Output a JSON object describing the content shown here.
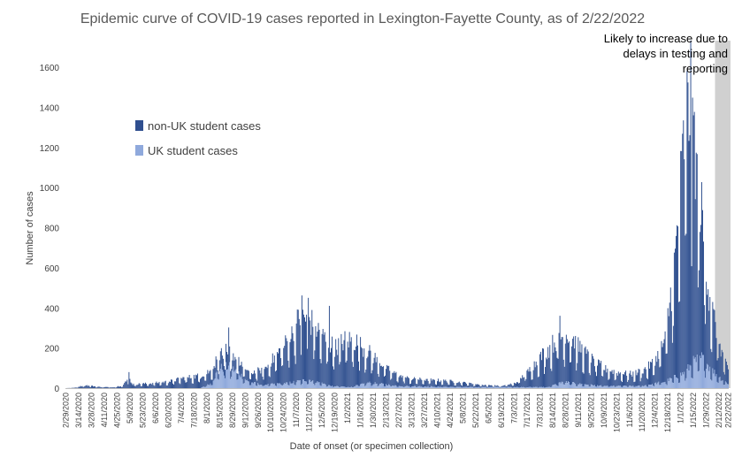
{
  "chart_data": {
    "type": "bar",
    "stacked": true,
    "title": "Epidemic curve of COVID-19 cases reported in Lexington-Fayette County, as of 2/22/2022",
    "xlabel": "Date of onset (or specimen collection)",
    "ylabel": "Number of cases",
    "ylim": [
      0,
      1600
    ],
    "yticks": [
      0,
      200,
      400,
      600,
      800,
      1000,
      1200,
      1400,
      1600
    ],
    "grid": false,
    "legend_position": "upper-left",
    "x_start": "2020-02-29",
    "x_end": "2022-02-22",
    "xtick_labels": [
      "2/29/2020",
      "3/14/2020",
      "3/28/2020",
      "4/11/2020",
      "4/25/2020",
      "5/9/2020",
      "5/23/2020",
      "6/6/2020",
      "6/20/2020",
      "7/4/2020",
      "7/18/2020",
      "8/1/2020",
      "8/15/2020",
      "8/29/2020",
      "9/12/2020",
      "9/26/2020",
      "10/10/2020",
      "10/24/2020",
      "11/7/2020",
      "11/21/2020",
      "12/5/2020",
      "12/19/2020",
      "1/2/2021",
      "1/16/2021",
      "1/30/2021",
      "2/13/2021",
      "2/27/2021",
      "3/13/2021",
      "3/27/2021",
      "4/10/2021",
      "4/24/2021",
      "5/8/2021",
      "5/22/2021",
      "6/5/2021",
      "6/19/2021",
      "7/3/2021",
      "7/17/2021",
      "7/31/2021",
      "8/14/2021",
      "8/28/2021",
      "9/11/2021",
      "9/25/2021",
      "10/9/2021",
      "10/23/2021",
      "11/6/2021",
      "11/20/2021",
      "12/4/2021",
      "12/18/2021",
      "1/1/2022",
      "1/15/2022",
      "1/29/2022",
      "2/12/2022",
      "2/22/2022"
    ],
    "series": [
      {
        "name": "non-UK student cases",
        "color": "#2f4f8f",
        "keyframes": [
          [
            "2020-02-29",
            0
          ],
          [
            "2020-03-10",
            2
          ],
          [
            "2020-03-21",
            14
          ],
          [
            "2020-04-05",
            6
          ],
          [
            "2020-04-20",
            4
          ],
          [
            "2020-05-01",
            12
          ],
          [
            "2020-05-08",
            45
          ],
          [
            "2020-05-12",
            18
          ],
          [
            "2020-06-01",
            22
          ],
          [
            "2020-06-20",
            30
          ],
          [
            "2020-07-05",
            45
          ],
          [
            "2020-07-20",
            55
          ],
          [
            "2020-08-05",
            60
          ],
          [
            "2020-08-20",
            70
          ],
          [
            "2020-09-05",
            55
          ],
          [
            "2020-09-20",
            45
          ],
          [
            "2020-10-05",
            80
          ],
          [
            "2020-10-20",
            150
          ],
          [
            "2020-11-01",
            220
          ],
          [
            "2020-11-12",
            300
          ],
          [
            "2020-11-22",
            280
          ],
          [
            "2020-12-01",
            240
          ],
          [
            "2020-12-10",
            200
          ],
          [
            "2020-12-20",
            180
          ],
          [
            "2021-01-01",
            220
          ],
          [
            "2021-01-10",
            210
          ],
          [
            "2021-01-20",
            160
          ],
          [
            "2021-02-05",
            100
          ],
          [
            "2021-02-20",
            60
          ],
          [
            "2021-03-10",
            35
          ],
          [
            "2021-04-01",
            30
          ],
          [
            "2021-04-20",
            28
          ],
          [
            "2021-05-10",
            20
          ],
          [
            "2021-05-30",
            10
          ],
          [
            "2021-06-20",
            5
          ],
          [
            "2021-07-05",
            20
          ],
          [
            "2021-07-20",
            80
          ],
          [
            "2021-08-05",
            160
          ],
          [
            "2021-08-20",
            210
          ],
          [
            "2021-09-01",
            220
          ],
          [
            "2021-09-10",
            180
          ],
          [
            "2021-09-25",
            120
          ],
          [
            "2021-10-10",
            80
          ],
          [
            "2021-10-25",
            60
          ],
          [
            "2021-11-10",
            55
          ],
          [
            "2021-11-25",
            80
          ],
          [
            "2021-12-05",
            110
          ],
          [
            "2021-12-15",
            200
          ],
          [
            "2021-12-25",
            500
          ],
          [
            "2022-01-01",
            850
          ],
          [
            "2022-01-06",
            1150
          ],
          [
            "2022-01-12",
            1250
          ],
          [
            "2022-01-18",
            900
          ],
          [
            "2022-01-25",
            600
          ],
          [
            "2022-02-01",
            350
          ],
          [
            "2022-02-08",
            220
          ],
          [
            "2022-02-15",
            130
          ],
          [
            "2022-02-22",
            60
          ]
        ],
        "peaks": [
          [
            "2020-05-08",
            80
          ],
          [
            "2020-08-25",
            190
          ],
          [
            "2020-11-13",
            440
          ],
          [
            "2020-12-13",
            395
          ],
          [
            "2020-11-20",
            430
          ],
          [
            "2021-08-22",
            330
          ],
          [
            "2022-01-09",
            1405
          ],
          [
            "2022-01-14",
            1400
          ],
          [
            "2022-01-19",
            1000
          ]
        ]
      },
      {
        "name": "UK student cases",
        "color": "#8fa9dc",
        "keyframes": [
          [
            "2020-02-29",
            0
          ],
          [
            "2020-07-25",
            0
          ],
          [
            "2020-08-05",
            20
          ],
          [
            "2020-08-15",
            90
          ],
          [
            "2020-08-25",
            100
          ],
          [
            "2020-09-05",
            70
          ],
          [
            "2020-09-15",
            30
          ],
          [
            "2020-10-01",
            15
          ],
          [
            "2020-11-01",
            25
          ],
          [
            "2020-11-20",
            40
          ],
          [
            "2020-12-15",
            10
          ],
          [
            "2021-01-05",
            5
          ],
          [
            "2021-01-25",
            25
          ],
          [
            "2021-03-01",
            10
          ],
          [
            "2021-05-01",
            5
          ],
          [
            "2021-08-10",
            5
          ],
          [
            "2021-08-25",
            30
          ],
          [
            "2021-09-10",
            20
          ],
          [
            "2021-10-10",
            10
          ],
          [
            "2021-11-20",
            10
          ],
          [
            "2021-12-15",
            30
          ],
          [
            "2022-01-05",
            70
          ],
          [
            "2022-01-15",
            120
          ],
          [
            "2022-01-25",
            140
          ],
          [
            "2022-02-05",
            80
          ],
          [
            "2022-02-15",
            40
          ],
          [
            "2022-02-22",
            20
          ]
        ],
        "peaks": []
      }
    ],
    "annotation": {
      "text": "Likely to increase due to delays in testing and reporting",
      "lines": [
        "Likely to increase due to",
        "delays in testing and",
        "reporting"
      ],
      "shade_start": "2022-02-08",
      "shade_end": "2022-02-22",
      "shade_color": "#d0d0d0"
    }
  }
}
